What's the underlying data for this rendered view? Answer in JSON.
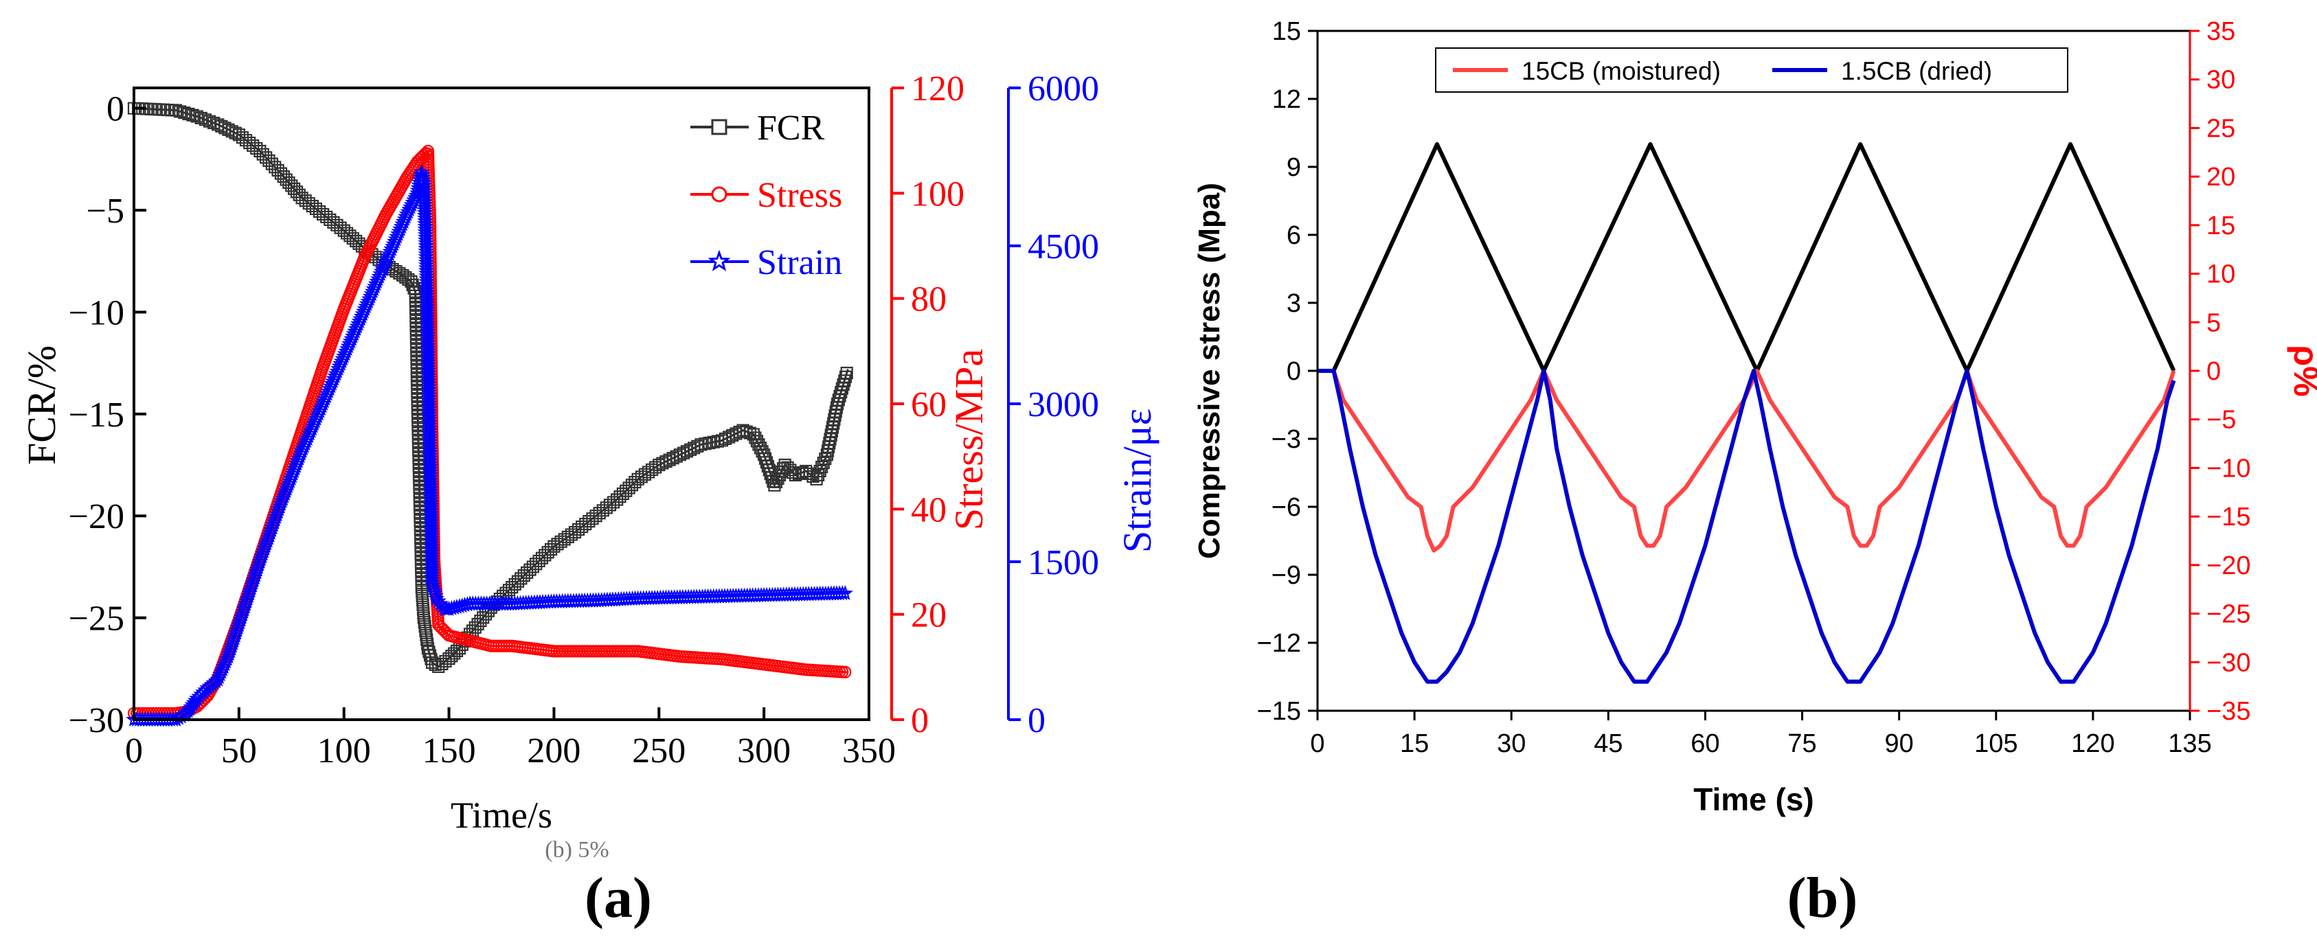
{
  "figure": {
    "panel_a_label": "(a)",
    "panel_b_label": "(b)"
  },
  "chart_data": [
    {
      "id": "a",
      "type": "line",
      "xlabel": "Time/s",
      "xlim": [
        0,
        350
      ],
      "xticks": [
        0,
        50,
        100,
        150,
        200,
        250,
        300,
        350
      ],
      "footnote": "(b) 5%",
      "axes": {
        "fcr": {
          "label": "FCR/%",
          "lim": [
            -30,
            1
          ],
          "ticks": [
            0,
            -5,
            -10,
            -15,
            -20,
            -25,
            -30
          ],
          "color": "#000000"
        },
        "stress": {
          "label": "Stress/MPa",
          "lim": [
            0,
            120
          ],
          "ticks": [
            0,
            20,
            40,
            60,
            80,
            100,
            120
          ],
          "color": "#ff0000"
        },
        "strain": {
          "label": "Strain/με",
          "lim": [
            0,
            6000
          ],
          "ticks": [
            0,
            1500,
            3000,
            4500,
            6000
          ],
          "color": "#0000ff"
        }
      },
      "legend": {
        "position": "top-right",
        "entries": [
          "FCR",
          "Stress",
          "Strain"
        ]
      },
      "series": [
        {
          "name": "FCR",
          "axis": "fcr",
          "color": "#333333",
          "marker": "square",
          "x": [
            0,
            20,
            30,
            40,
            50,
            60,
            70,
            80,
            90,
            100,
            110,
            120,
            128,
            132,
            134,
            135,
            136,
            137,
            138,
            140,
            142,
            145,
            150,
            155,
            160,
            170,
            180,
            190,
            200,
            210,
            220,
            230,
            240,
            250,
            260,
            270,
            280,
            290,
            295,
            300,
            305,
            310,
            315,
            320,
            325,
            330,
            335,
            340
          ],
          "y": [
            0,
            -0.1,
            -0.4,
            -0.8,
            -1.3,
            -2.1,
            -3.2,
            -4.4,
            -5.2,
            -6.0,
            -6.9,
            -7.7,
            -8.2,
            -8.5,
            -9.0,
            -14.5,
            -19.0,
            -23.5,
            -25.0,
            -26.5,
            -27.2,
            -27.4,
            -27.0,
            -26.5,
            -25.8,
            -24.5,
            -23.5,
            -22.5,
            -21.5,
            -20.8,
            -20.0,
            -19.2,
            -18.2,
            -17.5,
            -17.0,
            -16.5,
            -16.3,
            -15.8,
            -16.0,
            -17.0,
            -18.5,
            -17.5,
            -18.0,
            -17.8,
            -18.2,
            -17.0,
            -14.5,
            -12.8
          ]
        },
        {
          "name": "Stress",
          "axis": "stress",
          "color": "#ff0000",
          "marker": "circle",
          "x": [
            0,
            20,
            25,
            30,
            35,
            40,
            50,
            60,
            70,
            80,
            90,
            100,
            110,
            120,
            130,
            135,
            140,
            141,
            142,
            143,
            145,
            150,
            160,
            170,
            180,
            190,
            200,
            220,
            240,
            260,
            280,
            300,
            320,
            340
          ],
          "y": [
            1.2,
            1.2,
            1.5,
            2.5,
            4.5,
            8,
            19,
            31,
            43,
            55,
            67,
            78,
            88,
            96,
            103,
            106,
            108,
            95,
            56,
            30,
            18,
            16,
            15,
            14,
            14,
            13.5,
            13,
            13,
            13,
            12,
            11.5,
            10.5,
            9.5,
            9
          ]
        },
        {
          "name": "Strain",
          "axis": "strain",
          "color": "#0000ff",
          "marker": "star",
          "x": [
            0,
            20,
            25,
            30,
            35,
            40,
            45,
            50,
            60,
            70,
            80,
            90,
            100,
            110,
            120,
            130,
            135,
            137,
            138,
            139,
            140,
            142,
            144,
            146,
            148,
            150,
            160,
            180,
            200,
            220,
            240,
            260,
            280,
            300,
            320,
            340
          ],
          "y": [
            0,
            0,
            60,
            200,
            300,
            380,
            600,
            900,
            1500,
            2050,
            2550,
            3000,
            3450,
            3900,
            4350,
            4800,
            5000,
            5200,
            5100,
            4500,
            3500,
            1300,
            1150,
            1100,
            1050,
            1050,
            1100,
            1100,
            1120,
            1130,
            1150,
            1160,
            1170,
            1180,
            1190,
            1200
          ]
        }
      ]
    },
    {
      "id": "b",
      "type": "line",
      "xlabel": "Time (s)",
      "xlim": [
        0,
        135
      ],
      "xticks": [
        0,
        15,
        30,
        45,
        60,
        75,
        90,
        105,
        120,
        135
      ],
      "axes": {
        "left": {
          "label": "Compressive stress (Mpa)",
          "lim": [
            -15,
            15
          ],
          "ticks": [
            15,
            12,
            9,
            6,
            3,
            0,
            -3,
            -6,
            -9,
            -12,
            -15
          ],
          "color": "#000000"
        },
        "right": {
          "label": "ρ%",
          "lim": [
            -35,
            35
          ],
          "ticks": [
            35,
            30,
            25,
            20,
            15,
            10,
            5,
            0,
            -5,
            -10,
            -15,
            -20,
            -25,
            -30,
            -35
          ],
          "color": "#ff0000"
        }
      },
      "legend": {
        "position": "top-center",
        "entries": [
          "15CB (moistured)",
          "1.5CB (dried)"
        ]
      },
      "series": [
        {
          "name": "Compressive stress",
          "axis": "left",
          "color": "#000000",
          "in_legend": false,
          "x": [
            0,
            2.5,
            18.5,
            35,
            51.5,
            68,
            84,
            100.5,
            116.5,
            132.5
          ],
          "y": [
            0,
            0,
            10,
            0,
            10,
            0,
            10,
            0,
            10,
            0
          ]
        },
        {
          "name": "15CB (moistured)",
          "axis": "right",
          "color": "#ff4444",
          "in_legend": true,
          "x": [
            0,
            2.5,
            4,
            6,
            8,
            10,
            12,
            14,
            16,
            17,
            18,
            19,
            20,
            21,
            24,
            27,
            30,
            33,
            35,
            37,
            39,
            41,
            43,
            45,
            47,
            49,
            50,
            51,
            52,
            53,
            54,
            57,
            60,
            63,
            66,
            68,
            70,
            72,
            74,
            76,
            78,
            80,
            82,
            83,
            84,
            85,
            86,
            87,
            90,
            93,
            96,
            99,
            100.5,
            102,
            104,
            106,
            108,
            110,
            112,
            114,
            115,
            116,
            117,
            118,
            119,
            122,
            125,
            128,
            131,
            132.5
          ],
          "y": [
            0,
            0,
            -3,
            -5,
            -7,
            -9,
            -11,
            -13,
            -14,
            -17,
            -18.5,
            -18,
            -17,
            -14,
            -12,
            -9,
            -6,
            -3,
            0,
            -3,
            -5,
            -7,
            -9,
            -11,
            -13,
            -14,
            -17,
            -18,
            -18,
            -17,
            -14,
            -12,
            -9,
            -6,
            -3,
            0,
            -3,
            -5,
            -7,
            -9,
            -11,
            -13,
            -14,
            -17,
            -18,
            -18,
            -17,
            -14,
            -12,
            -9,
            -6,
            -3,
            0,
            -3,
            -5,
            -7,
            -9,
            -11,
            -13,
            -14,
            -17,
            -18,
            -18,
            -17,
            -14,
            -12,
            -9,
            -6,
            -3,
            0
          ]
        },
        {
          "name": "1.5CB (dried)",
          "axis": "right",
          "color": "#0000cc",
          "in_legend": true,
          "x": [
            0,
            2.5,
            3.5,
            5,
            7,
            9,
            11,
            13,
            15,
            17,
            18.5,
            20,
            22,
            24,
            26,
            28,
            30,
            32,
            34,
            35,
            36,
            37,
            39,
            41,
            43,
            45,
            47,
            49,
            51,
            52,
            54,
            56,
            58,
            60,
            62,
            64,
            66,
            67.5,
            68.5,
            70,
            72,
            74,
            76,
            78,
            80,
            82,
            84,
            85,
            87,
            89,
            91,
            93,
            95,
            97,
            99,
            100.5,
            101.5,
            103,
            105,
            107,
            109,
            111,
            113,
            115,
            117,
            118,
            120,
            122,
            124,
            126,
            128,
            130,
            131.5,
            132.5
          ],
          "y": [
            0,
            0,
            -3,
            -8,
            -14,
            -19,
            -23,
            -27,
            -30,
            -32,
            -32,
            -31,
            -29,
            -26,
            -22,
            -18,
            -13,
            -8,
            -3,
            0,
            -3,
            -8,
            -14,
            -19,
            -23,
            -27,
            -30,
            -32,
            -32,
            -31,
            -29,
            -26,
            -22,
            -18,
            -13,
            -8,
            -3,
            0,
            -3,
            -8,
            -14,
            -19,
            -23,
            -27,
            -30,
            -32,
            -32,
            -31,
            -29,
            -26,
            -22,
            -18,
            -13,
            -8,
            -3,
            0,
            -3,
            -8,
            -14,
            -19,
            -23,
            -27,
            -30,
            -32,
            -32,
            -31,
            -29,
            -26,
            -22,
            -18,
            -13,
            -8,
            -3,
            -1
          ]
        }
      ]
    }
  ]
}
